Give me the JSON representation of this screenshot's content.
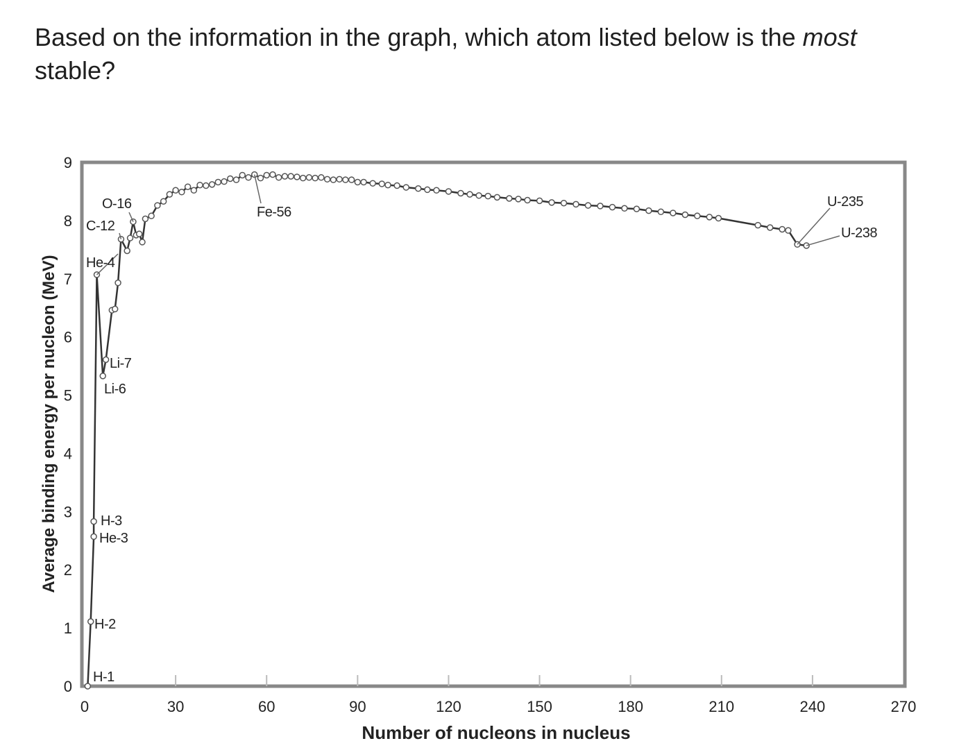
{
  "question": {
    "text_before": "Based on the information in the graph, which atom listed below is the ",
    "emphasis": "most",
    "text_after": " stable?"
  },
  "chart_data": {
    "type": "line",
    "title": "",
    "xlabel": "Number of nucleons in nucleus",
    "ylabel": "Average binding energy per nucleon (MeV)",
    "xlim": [
      0,
      270
    ],
    "ylim": [
      0,
      9
    ],
    "xticks": [
      0,
      30,
      60,
      90,
      120,
      150,
      180,
      210,
      240,
      270
    ],
    "xtick_labels": [
      "0",
      "30",
      "60",
      "90",
      "120",
      "150",
      "180",
      "210",
      "240",
      "270"
    ],
    "yticks": [
      0,
      1,
      2,
      3,
      4,
      5,
      6,
      7,
      8,
      9
    ],
    "ytick_labels": [
      "0",
      "1",
      "2",
      "3",
      "4",
      "5",
      "6",
      "7",
      "8",
      "9"
    ],
    "grid": false,
    "line_color": "#333333",
    "marker_fill": "#ffffff",
    "frame_color": "#888888",
    "series": [
      {
        "x": [
          1,
          2,
          3,
          3,
          4,
          6,
          7,
          9,
          10,
          11,
          12,
          14,
          15,
          16,
          17,
          18,
          19,
          20,
          22,
          24,
          26,
          28,
          30,
          32,
          34,
          36,
          38,
          40,
          42,
          44,
          46,
          48,
          50,
          52,
          54,
          56,
          58,
          60,
          62,
          64,
          66,
          68,
          70,
          72,
          74,
          76,
          78,
          80,
          82,
          84,
          86,
          88,
          90,
          92,
          95,
          98,
          100,
          103,
          106,
          110,
          113,
          116,
          120,
          124,
          127,
          130,
          133,
          136,
          140,
          143,
          146,
          150,
          154,
          158,
          162,
          166,
          170,
          174,
          178,
          182,
          186,
          190,
          194,
          198,
          202,
          206,
          209,
          222,
          226,
          230,
          232,
          235,
          238
        ],
        "y": [
          0,
          1.11,
          2.57,
          2.83,
          7.07,
          5.33,
          5.61,
          6.46,
          6.48,
          6.93,
          7.68,
          7.48,
          7.7,
          7.98,
          7.75,
          7.77,
          7.63,
          8.03,
          8.08,
          8.26,
          8.33,
          8.45,
          8.52,
          8.49,
          8.58,
          8.52,
          8.61,
          8.6,
          8.62,
          8.66,
          8.67,
          8.72,
          8.7,
          8.78,
          8.74,
          8.79,
          8.73,
          8.78,
          8.79,
          8.74,
          8.76,
          8.76,
          8.75,
          8.73,
          8.74,
          8.73,
          8.74,
          8.71,
          8.7,
          8.71,
          8.7,
          8.7,
          8.66,
          8.66,
          8.64,
          8.63,
          8.61,
          8.6,
          8.57,
          8.55,
          8.53,
          8.52,
          8.5,
          8.47,
          8.45,
          8.43,
          8.42,
          8.4,
          8.38,
          8.37,
          8.35,
          8.34,
          8.31,
          8.3,
          8.28,
          8.26,
          8.25,
          8.23,
          8.21,
          8.2,
          8.17,
          8.15,
          8.13,
          8.1,
          8.08,
          8.06,
          8.04,
          7.92,
          7.88,
          7.85,
          7.83,
          7.59,
          7.57
        ]
      }
    ],
    "annotations": [
      {
        "text": "O-16",
        "x": 16,
        "y": 7.98
      },
      {
        "text": "C-12",
        "x": 12,
        "y": 7.68
      },
      {
        "text": "He-4",
        "x": 4,
        "y": 7.07
      },
      {
        "text": "Li-7",
        "x": 7,
        "y": 5.61
      },
      {
        "text": "Li-6",
        "x": 6,
        "y": 5.33
      },
      {
        "text": "H-3",
        "x": 3,
        "y": 2.83
      },
      {
        "text": "He-3",
        "x": 3,
        "y": 2.57
      },
      {
        "text": "H-2",
        "x": 2,
        "y": 1.11
      },
      {
        "text": "H-1",
        "x": 1,
        "y": 0
      },
      {
        "text": "Fe-56",
        "x": 56,
        "y": 8.79
      },
      {
        "text": "U-235",
        "x": 235,
        "y": 7.59
      },
      {
        "text": "U-238",
        "x": 238,
        "y": 7.57
      }
    ]
  }
}
